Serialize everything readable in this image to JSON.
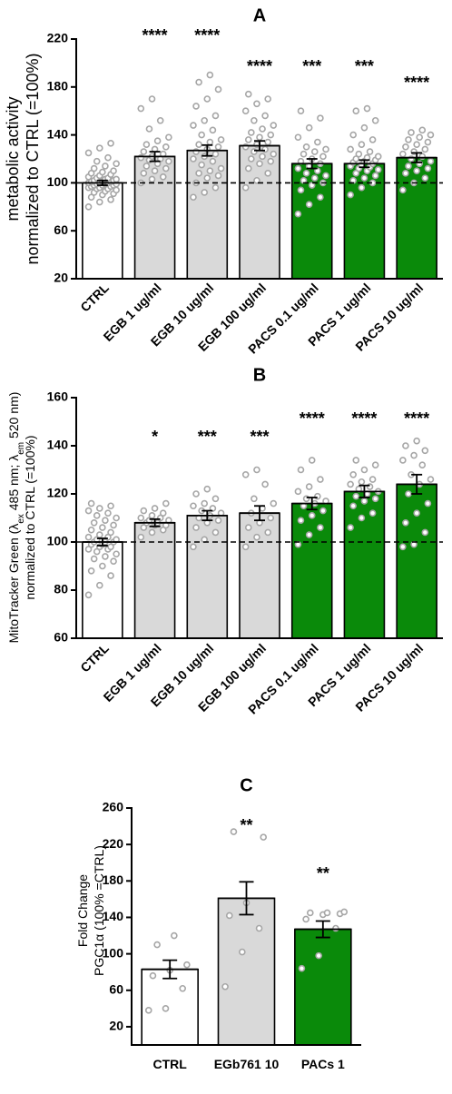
{
  "chart_data": [
    {
      "type": "bar",
      "title": "A",
      "ylabel_lines": [
        "metabolic activity",
        "normalized to CTRL (=100%)"
      ],
      "ylim": [
        20,
        220
      ],
      "yticks": [
        20,
        60,
        100,
        140,
        180,
        220
      ],
      "reference_line": 100,
      "categories": [
        "CTRL",
        "EGB 1 ug/ml",
        "EGB 10 ug/ml",
        "EGB 100 ug/ml",
        "PACS 0.1 ug/ml",
        "PACS 1 ug/ml",
        "PACS 10 ug/ml"
      ],
      "values": [
        100,
        122,
        127,
        131,
        116,
        116,
        121
      ],
      "errors": [
        2,
        4,
        4.5,
        4,
        4,
        3,
        4
      ],
      "significance": [
        "",
        "****",
        "****",
        "****",
        "***",
        "***",
        "****"
      ],
      "fill_colors": [
        "#ffffff",
        "#d9d9d9",
        "#d9d9d9",
        "#d9d9d9",
        "#0a8a0a",
        "#0a8a0a",
        "#0a8a0a"
      ],
      "points": [
        [
          80,
          84,
          86,
          88,
          90,
          91,
          92,
          93,
          94,
          95,
          95,
          96,
          96,
          97,
          97,
          98,
          98,
          98,
          99,
          99,
          99,
          100,
          100,
          100,
          101,
          101,
          101,
          102,
          102,
          103,
          103,
          104,
          104,
          105,
          106,
          107,
          108,
          109,
          110,
          112,
          114,
          116,
          118,
          121,
          125,
          129,
          133
        ],
        [
          100,
          103,
          105,
          108,
          110,
          112,
          114,
          116,
          118,
          119,
          120,
          121,
          122,
          124,
          126,
          128,
          130,
          132,
          135,
          138,
          145,
          152,
          162,
          170
        ],
        [
          88,
          92,
          96,
          100,
          104,
          106,
          108,
          110,
          112,
          115,
          118,
          120,
          122,
          124,
          126,
          128,
          130,
          132,
          134,
          136,
          140,
          144,
          148,
          152,
          156,
          164,
          170,
          178,
          184,
          190
        ],
        [
          96,
          102,
          108,
          112,
          116,
          118,
          120,
          122,
          124,
          126,
          128,
          130,
          132,
          134,
          136,
          138,
          140,
          142,
          145,
          148,
          152,
          156,
          160,
          166,
          170,
          174
        ],
        [
          74,
          82,
          88,
          94,
          98,
          100,
          102,
          104,
          106,
          108,
          110,
          112,
          114,
          116,
          118,
          120,
          122,
          124,
          126,
          128,
          130,
          134,
          138,
          146,
          154,
          160
        ],
        [
          90,
          96,
          100,
          102,
          104,
          106,
          108,
          110,
          111,
          112,
          113,
          114,
          115,
          116,
          117,
          118,
          119,
          120,
          121,
          122,
          124,
          126,
          128,
          132,
          136,
          140,
          146,
          152,
          160,
          162
        ],
        [
          94,
          100,
          104,
          108,
          110,
          112,
          114,
          116,
          118,
          120,
          122,
          124,
          126,
          128,
          130,
          132,
          134,
          136,
          138,
          140,
          142,
          144
        ]
      ]
    },
    {
      "type": "bar",
      "title": "B",
      "ylabel_line1_parts": [
        "MitoTracker Green (λ",
        "ex",
        " 485 nm; λ",
        "em",
        " 520 nm)"
      ],
      "ylabel_line2": "normalized to CTRL (=100%)",
      "ylim": [
        60,
        160
      ],
      "yticks": [
        60,
        80,
        100,
        120,
        140,
        160
      ],
      "reference_line": 100,
      "categories": [
        "CTRL",
        "EGB 1 ug/ml",
        "EGB 10 ug/ml",
        "EGB 100 ug/ml",
        "PACS 0.1 ug/ml",
        "PACS 1 ug/ml",
        "PACS 10 ug/ml"
      ],
      "values": [
        100,
        108,
        111,
        112,
        116,
        121,
        124
      ],
      "errors": [
        1.5,
        1.5,
        2,
        3,
        2.5,
        2.5,
        4
      ],
      "significance": [
        "",
        "*",
        "***",
        "***",
        "****",
        "****",
        "****"
      ],
      "fill_colors": [
        "#ffffff",
        "#d9d9d9",
        "#d9d9d9",
        "#d9d9d9",
        "#0a8a0a",
        "#0a8a0a",
        "#0a8a0a"
      ],
      "points": [
        [
          78,
          82,
          86,
          88,
          90,
          92,
          93,
          94,
          95,
          96,
          97,
          97,
          98,
          98,
          99,
          99,
          100,
          100,
          100,
          101,
          101,
          102,
          102,
          103,
          104,
          105,
          106,
          107,
          108,
          109,
          110,
          111,
          112,
          113,
          114,
          115,
          116
        ],
        [
          102,
          104,
          105,
          106,
          107,
          107,
          108,
          108,
          109,
          109,
          110,
          110,
          111,
          112,
          113,
          114,
          116
        ],
        [
          98,
          101,
          104,
          106,
          108,
          109,
          110,
          111,
          112,
          113,
          114,
          115,
          116,
          118,
          120,
          122
        ],
        [
          98,
          102,
          104,
          106,
          108,
          110,
          112,
          114,
          116,
          118,
          124,
          128,
          130
        ],
        [
          99,
          103,
          106,
          109,
          111,
          113,
          115,
          116,
          117,
          118,
          119,
          121,
          123,
          126,
          130,
          134
        ],
        [
          106,
          110,
          112,
          115,
          117,
          118,
          119,
          120,
          121,
          122,
          123,
          124,
          125,
          126,
          128,
          130,
          132,
          134
        ],
        [
          98,
          99,
          104,
          108,
          112,
          116,
          120,
          124,
          126,
          128,
          132,
          134,
          136,
          138,
          140,
          142
        ]
      ]
    },
    {
      "type": "bar",
      "title": "C",
      "ylabel_line1": "Fold Change",
      "ylabel_line2": "PGC1α (100% =CTRL)",
      "ylim": [
        0,
        260
      ],
      "yticks": [
        20,
        60,
        100,
        140,
        180,
        220,
        260
      ],
      "categories": [
        "CTRL",
        "EGb761 10",
        "PACs 1"
      ],
      "values": [
        83,
        161,
        127
      ],
      "errors": [
        10,
        18,
        9
      ],
      "significance": [
        "",
        "**",
        "**"
      ],
      "fill_colors": [
        "#ffffff",
        "#d9d9d9",
        "#0a8a0a"
      ],
      "points": [
        [
          38,
          40,
          62,
          76,
          82,
          88,
          110,
          120
        ],
        [
          64,
          102,
          128,
          142,
          156,
          228,
          234
        ],
        [
          84,
          98,
          128,
          138,
          143,
          144,
          145,
          145,
          146
        ]
      ]
    }
  ]
}
